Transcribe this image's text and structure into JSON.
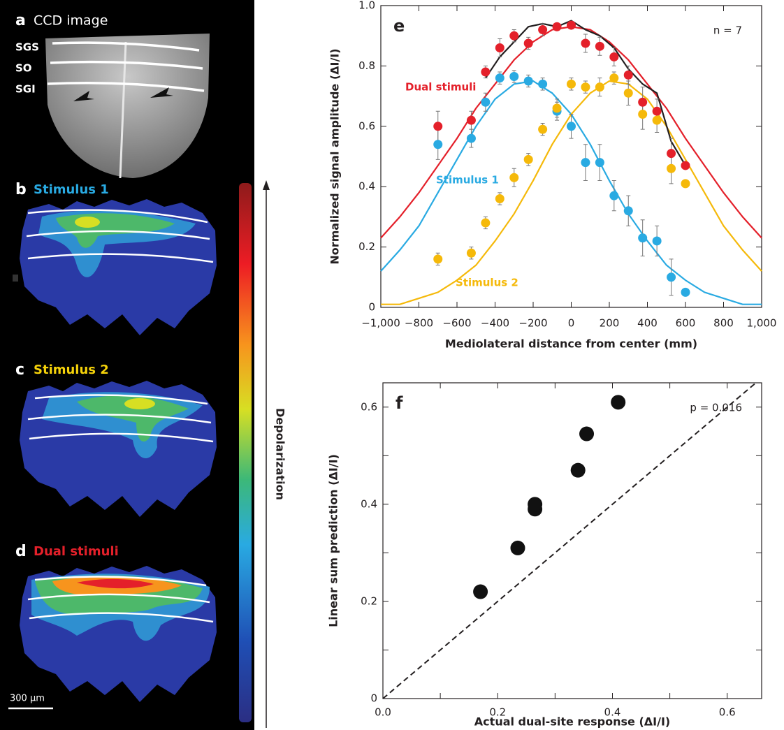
{
  "image_panels": {
    "a": {
      "label": "a",
      "title": "CCD image",
      "layers": [
        "SGS",
        "SO",
        "SGI"
      ]
    },
    "b": {
      "label": "b",
      "title": "Stimulus 1",
      "color": "#29aae2"
    },
    "c": {
      "label": "c",
      "title": "Stimulus 2",
      "color": "#f5d20a"
    },
    "d": {
      "label": "d",
      "title": "Dual stimuli",
      "color": "#e4202a"
    },
    "colorbar_label": "Depolarization",
    "scale_bar": "300 µm"
  },
  "chart_data": [
    {
      "type": "scatter",
      "panel_label": "e",
      "annotation": "n = 7",
      "x_label": "Mediolateral distance from center (mm)",
      "y_label": "Normalized signal amplitude (ΔI/I)",
      "xlim": [
        -1000,
        1000
      ],
      "ylim": [
        0,
        1
      ],
      "xticks": [
        {
          "value": -1000,
          "label": "−1,000"
        },
        {
          "value": -800,
          "label": "−800"
        },
        {
          "value": -600,
          "label": "−600"
        },
        {
          "value": -400,
          "label": "−400"
        },
        {
          "value": -200,
          "label": "−200"
        },
        0,
        200,
        400,
        600,
        800,
        {
          "value": 1000,
          "label": "1,000"
        }
      ],
      "yticks": [
        0,
        0.2,
        0.4,
        0.6,
        0.8,
        {
          "value": 1,
          "label": "1.0"
        }
      ],
      "x": [
        -700,
        -525,
        -450,
        -375,
        -300,
        -225,
        -150,
        -75,
        0,
        75,
        150,
        225,
        300,
        375,
        450,
        525,
        600
      ],
      "fit_x": [
        -1000,
        -900,
        -800,
        -700,
        -600,
        -500,
        -400,
        -300,
        -200,
        -100,
        0,
        100,
        200,
        300,
        400,
        500,
        600,
        700,
        800,
        900,
        1000
      ],
      "series": [
        {
          "name": "Dual stimuli",
          "color": "#e4202a",
          "values": [
            0.6,
            0.62,
            0.78,
            0.86,
            0.9,
            0.875,
            0.92,
            0.93,
            0.935,
            0.875,
            0.865,
            0.83,
            0.77,
            0.68,
            0.65,
            0.51,
            0.47
          ],
          "errors": [
            0.05,
            0.03,
            0.02,
            0.03,
            0.02,
            0.02,
            0.02,
            0.01,
            0.01,
            0.03,
            0.03,
            0.03,
            0.03,
            0.05,
            0.04,
            0.05,
            0.01
          ],
          "fit": [
            0.23,
            0.3,
            0.38,
            0.47,
            0.56,
            0.66,
            0.74,
            0.82,
            0.88,
            0.92,
            0.93,
            0.92,
            0.88,
            0.82,
            0.74,
            0.66,
            0.56,
            0.47,
            0.38,
            0.3,
            0.23
          ]
        },
        {
          "name": "Stimulus 1",
          "color": "#29aae2",
          "values": [
            0.54,
            0.56,
            0.68,
            0.76,
            0.765,
            0.75,
            0.74,
            0.65,
            0.6,
            0.48,
            0.48,
            0.37,
            0.32,
            0.23,
            0.22,
            0.1,
            0.05
          ],
          "errors": [
            0.05,
            0.03,
            0.03,
            0.02,
            0.02,
            0.02,
            0.02,
            0.03,
            0.04,
            0.06,
            0.06,
            0.05,
            0.05,
            0.06,
            0.05,
            0.06,
            0.01
          ],
          "fit": [
            0.12,
            0.19,
            0.27,
            0.38,
            0.49,
            0.6,
            0.69,
            0.74,
            0.75,
            0.71,
            0.64,
            0.54,
            0.42,
            0.31,
            0.22,
            0.14,
            0.09,
            0.05,
            0.03,
            0.01,
            0.01
          ]
        },
        {
          "name": "Stimulus 2",
          "color": "#f5b90a",
          "values": [
            0.16,
            0.18,
            0.28,
            0.36,
            0.43,
            0.49,
            0.59,
            0.66,
            0.74,
            0.73,
            0.73,
            0.76,
            0.71,
            0.64,
            0.62,
            0.46,
            0.41
          ],
          "errors": [
            0.02,
            0.02,
            0.02,
            0.02,
            0.03,
            0.02,
            0.02,
            0.03,
            0.02,
            0.02,
            0.03,
            0.02,
            0.04,
            0.05,
            0.04,
            0.05,
            0.01
          ],
          "fit": [
            0.01,
            0.01,
            0.03,
            0.05,
            0.09,
            0.14,
            0.22,
            0.31,
            0.42,
            0.54,
            0.64,
            0.71,
            0.75,
            0.74,
            0.69,
            0.6,
            0.49,
            0.38,
            0.27,
            0.19,
            0.12
          ]
        }
      ],
      "line": {
        "color": "#231f20",
        "x": [
          -450,
          -375,
          -300,
          -225,
          -150,
          -75,
          0,
          75,
          150,
          225,
          300,
          375,
          450,
          525,
          600
        ],
        "values": [
          0.76,
          0.83,
          0.88,
          0.93,
          0.94,
          0.93,
          0.95,
          0.92,
          0.9,
          0.86,
          0.79,
          0.74,
          0.71,
          0.55,
          0.47
        ]
      }
    },
    {
      "type": "scatter",
      "panel_label": "f",
      "annotation": "p = 0.016",
      "x_label": "Actual dual-site response (ΔI/I)",
      "y_label": "Linear sum prediction (ΔI/I)",
      "xlim": [
        0,
        0.66
      ],
      "ylim": [
        0,
        0.65
      ],
      "xticks": [
        {
          "value": 0,
          "label": "0.0"
        },
        0.2,
        0.4,
        0.6
      ],
      "yticks": [
        0,
        0.2,
        0.4,
        0.6
      ],
      "minor_xticks": [
        0.1,
        0.3,
        0.5
      ],
      "minor_yticks": [
        0.1,
        0.3,
        0.5
      ],
      "identity_line": true,
      "color": "#111111",
      "x": [
        0.17,
        0.235,
        0.265,
        0.265,
        0.34,
        0.355,
        0.41
      ],
      "values": [
        0.22,
        0.31,
        0.39,
        0.4,
        0.47,
        0.545,
        0.61
      ]
    }
  ]
}
